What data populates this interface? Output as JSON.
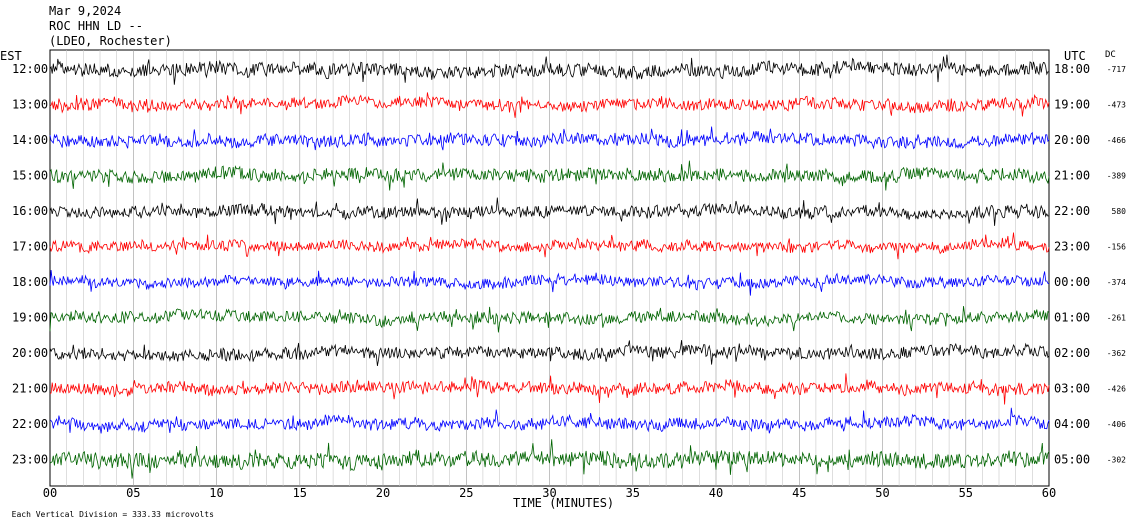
{
  "header": {
    "date": "Mar 9,2024",
    "station": "ROC HHN LD --",
    "network": "(LDEO, Rochester)"
  },
  "footer": {
    "scale_prefix": "Each Vertical Division = ",
    "scale_value": "333.33 microvolts"
  },
  "chart_data": {
    "type": "line",
    "title": "",
    "xlabel": "TIME (MINUTES)",
    "left_axis_title": "EST",
    "right_axis_title": "UTC",
    "dc_title": "DC",
    "xlim": [
      0,
      60
    ],
    "x_ticks": [
      "00",
      "05",
      "10",
      "15",
      "20",
      "25",
      "30",
      "35",
      "40",
      "45",
      "50",
      "55",
      "60"
    ],
    "grid": "vertical lines every minute",
    "colors": [
      "#000000",
      "#ff0000",
      "#0000ff",
      "#006400"
    ],
    "rows": [
      {
        "est": "12:00",
        "utc": "18:00",
        "dc": "-717",
        "amp": 1.0
      },
      {
        "est": "13:00",
        "utc": "19:00",
        "dc": "-473",
        "amp": 0.9
      },
      {
        "est": "14:00",
        "utc": "20:00",
        "dc": "-466",
        "amp": 0.9
      },
      {
        "est": "15:00",
        "utc": "21:00",
        "dc": "-389",
        "amp": 1.0
      },
      {
        "est": "16:00",
        "utc": "22:00",
        "dc": "580",
        "amp": 0.9
      },
      {
        "est": "17:00",
        "utc": "23:00",
        "dc": "-156",
        "amp": 0.8
      },
      {
        "est": "18:00",
        "utc": "00:00",
        "dc": "-374",
        "amp": 0.8
      },
      {
        "est": "19:00",
        "utc": "01:00",
        "dc": "-261",
        "amp": 0.9
      },
      {
        "est": "20:00",
        "utc": "02:00",
        "dc": "-362",
        "amp": 0.9
      },
      {
        "est": "21:00",
        "utc": "03:00",
        "dc": "-426",
        "amp": 0.9
      },
      {
        "est": "22:00",
        "utc": "04:00",
        "dc": "-406",
        "amp": 0.9
      },
      {
        "est": "23:00",
        "utc": "05:00",
        "dc": "-302",
        "amp": 1.2
      }
    ]
  }
}
